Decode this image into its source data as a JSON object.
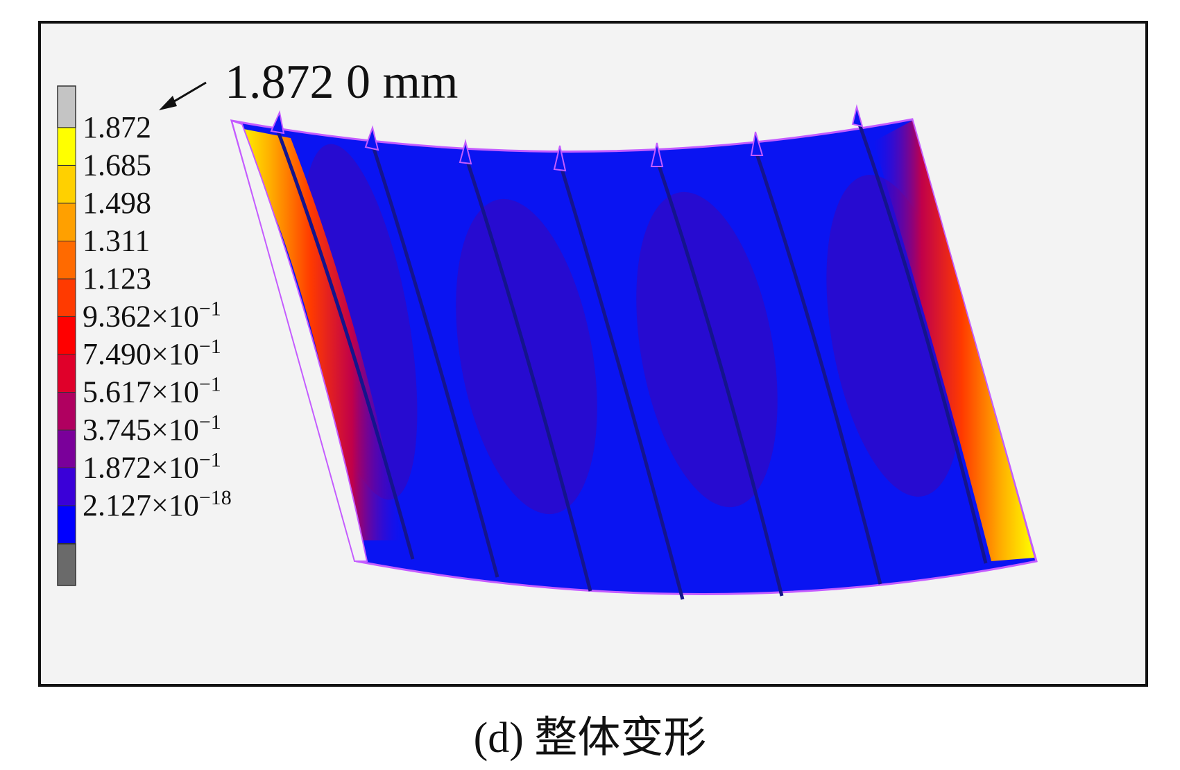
{
  "caption": "(d) 整体变形",
  "annotation": {
    "text": "1.872 0 mm"
  },
  "legend": {
    "items": [
      {
        "mantissa": "1.872",
        "exponent": "",
        "color": "#ffff00"
      },
      {
        "mantissa": "1.685",
        "exponent": "",
        "color": "#ffd000"
      },
      {
        "mantissa": "1.498",
        "exponent": "",
        "color": "#ffa000"
      },
      {
        "mantissa": "1.311",
        "exponent": "",
        "color": "#ff6a00"
      },
      {
        "mantissa": "1.123",
        "exponent": "",
        "color": "#ff3a00"
      },
      {
        "mantissa": "9.362×10",
        "exponent": "−1",
        "color": "#ff0000"
      },
      {
        "mantissa": "7.490×10",
        "exponent": "−1",
        "color": "#e0002a"
      },
      {
        "mantissa": "5.617×10",
        "exponent": "−1",
        "color": "#b00060"
      },
      {
        "mantissa": "3.745×10",
        "exponent": "−1",
        "color": "#7a009a"
      },
      {
        "mantissa": "1.872×10",
        "exponent": "−1",
        "color": "#3a00d8"
      },
      {
        "mantissa": "2.127×10",
        "exponent": "−18",
        "color": "#0000ff"
      }
    ],
    "top_color": "#c4c4c4",
    "bottom_color": "#6a6a6a"
  },
  "colors": {
    "base_blue": "#0a14f2",
    "edge": "#c45cff",
    "stiffener": "#14148c"
  }
}
